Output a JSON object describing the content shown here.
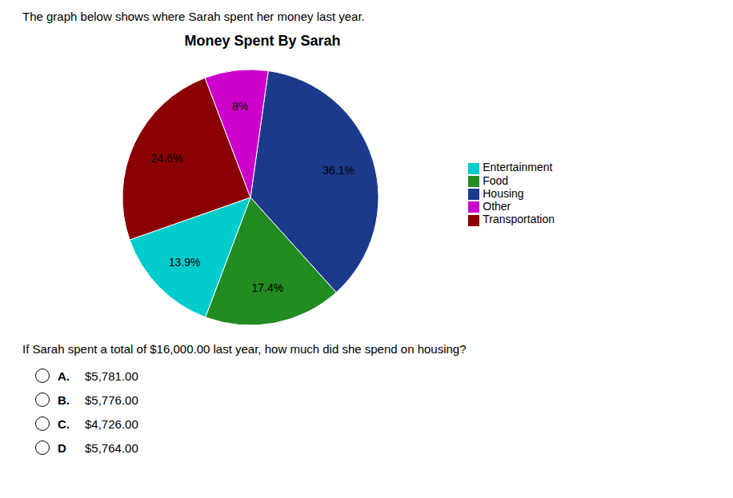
{
  "chart_data": {
    "type": "pie",
    "title": "Money Spent By Sarah",
    "subtitle": "The graph below shows where Sarah spent her money last year.",
    "categories": [
      "Housing",
      "Food",
      "Entertainment",
      "Transportation",
      "Other"
    ],
    "values": [
      36.1,
      17.4,
      13.9,
      24.6,
      8.0
    ],
    "value_labels": [
      "36.1%",
      "17.4%",
      "13.9%",
      "24.6%",
      "8%"
    ],
    "colors": [
      "#1C3A8C",
      "#228B22",
      "#00CCCC",
      "#8B0000",
      "#CC00CC"
    ],
    "data_labels": true,
    "legend": "right",
    "annotations": {
      "question": "If Sarah spent a total of $16,000.00 last year, how much did she spend on housing?",
      "options": [
        {
          "letter": "A.",
          "text": "$5,781.00"
        },
        {
          "letter": "B.",
          "text": "$5,776.00"
        },
        {
          "letter": "C.",
          "text": "$4,726.00"
        },
        {
          "letter": "D",
          "text": "$5,764.00"
        }
      ]
    }
  }
}
